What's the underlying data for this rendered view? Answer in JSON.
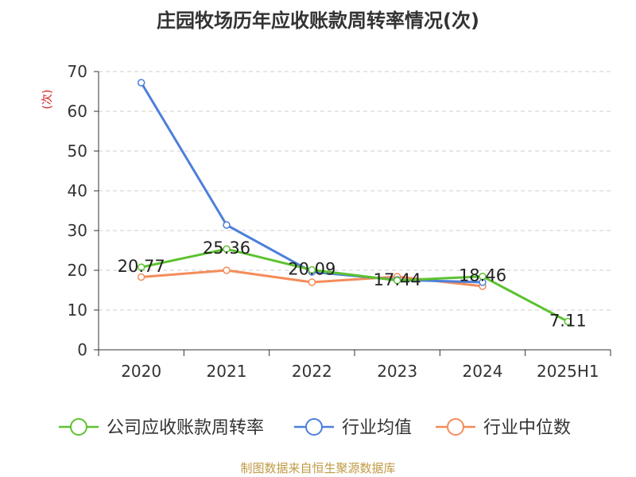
{
  "chart_data": {
    "type": "line",
    "title": "庄园牧场历年应收账款周转率情况(次)",
    "ylabel": "(次)",
    "categories": [
      "2020",
      "2021",
      "2022",
      "2023",
      "2024",
      "2025H1"
    ],
    "ylim": [
      0,
      70
    ],
    "yticks": [
      0,
      10,
      20,
      30,
      40,
      50,
      60,
      70
    ],
    "grid": true,
    "legend_position": "bottom",
    "series": [
      {
        "name": "公司应收账款周转率",
        "color": "#5cc22f",
        "values": [
          20.77,
          25.36,
          20.09,
          17.44,
          18.46,
          7.11
        ],
        "labels": [
          "20.77",
          "25.36",
          "20.09",
          "17.44",
          "18.46",
          "7.11"
        ]
      },
      {
        "name": "行业均值",
        "color": "#4d7fdb",
        "values": [
          67.2,
          31.4,
          19.6,
          17.6,
          17.0,
          null
        ]
      },
      {
        "name": "行业中位数",
        "color": "#f48c5a",
        "values": [
          18.3,
          20.0,
          17.0,
          18.4,
          16.0,
          null
        ]
      }
    ]
  },
  "source": "制图数据来自恒生聚源数据库"
}
